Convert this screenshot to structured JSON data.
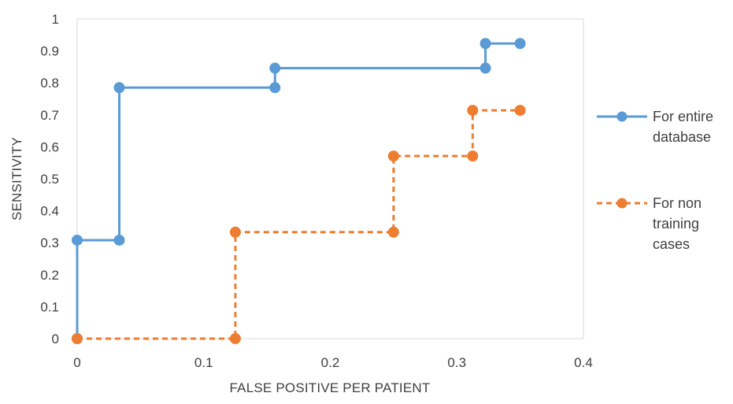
{
  "chart_data": {
    "type": "line",
    "title": "",
    "xlabel": "FALSE POSITIVE PER PATIENT",
    "ylabel": "SENSITIVITY",
    "xlim": [
      0,
      0.4
    ],
    "ylim": [
      0,
      1
    ],
    "x_ticks": [
      "0",
      "0.1",
      "0.2",
      "0.3",
      "0.4"
    ],
    "y_ticks": [
      "0",
      "0.1",
      "0.2",
      "0.3",
      "0.4",
      "0.5",
      "0.6",
      "0.7",
      "0.8",
      "0.9",
      "1"
    ],
    "grid": false,
    "legend_position": "right",
    "series": [
      {
        "name": "For entire database",
        "legend_lines": [
          "For entire",
          "database"
        ],
        "color": "#5B9BD5",
        "line_style": "solid",
        "marker": "circle",
        "points": [
          [
            0,
            0
          ],
          [
            0,
            0.308
          ],
          [
            0.0333,
            0.308
          ],
          [
            0.0333,
            0.785
          ],
          [
            0.1563,
            0.785
          ],
          [
            0.1563,
            0.846
          ],
          [
            0.3226,
            0.846
          ],
          [
            0.3226,
            0.923
          ],
          [
            0.35,
            0.923
          ]
        ]
      },
      {
        "name": "For non training cases",
        "legend_lines": [
          "For non",
          "training",
          "cases"
        ],
        "color": "#ED7D31",
        "line_style": "dashed",
        "marker": "circle",
        "points": [
          [
            0,
            0
          ],
          [
            0.125,
            0
          ],
          [
            0.125,
            0.333
          ],
          [
            0.25,
            0.333
          ],
          [
            0.25,
            0.571
          ],
          [
            0.3125,
            0.571
          ],
          [
            0.3125,
            0.714
          ],
          [
            0.35,
            0.714
          ]
        ]
      }
    ]
  }
}
